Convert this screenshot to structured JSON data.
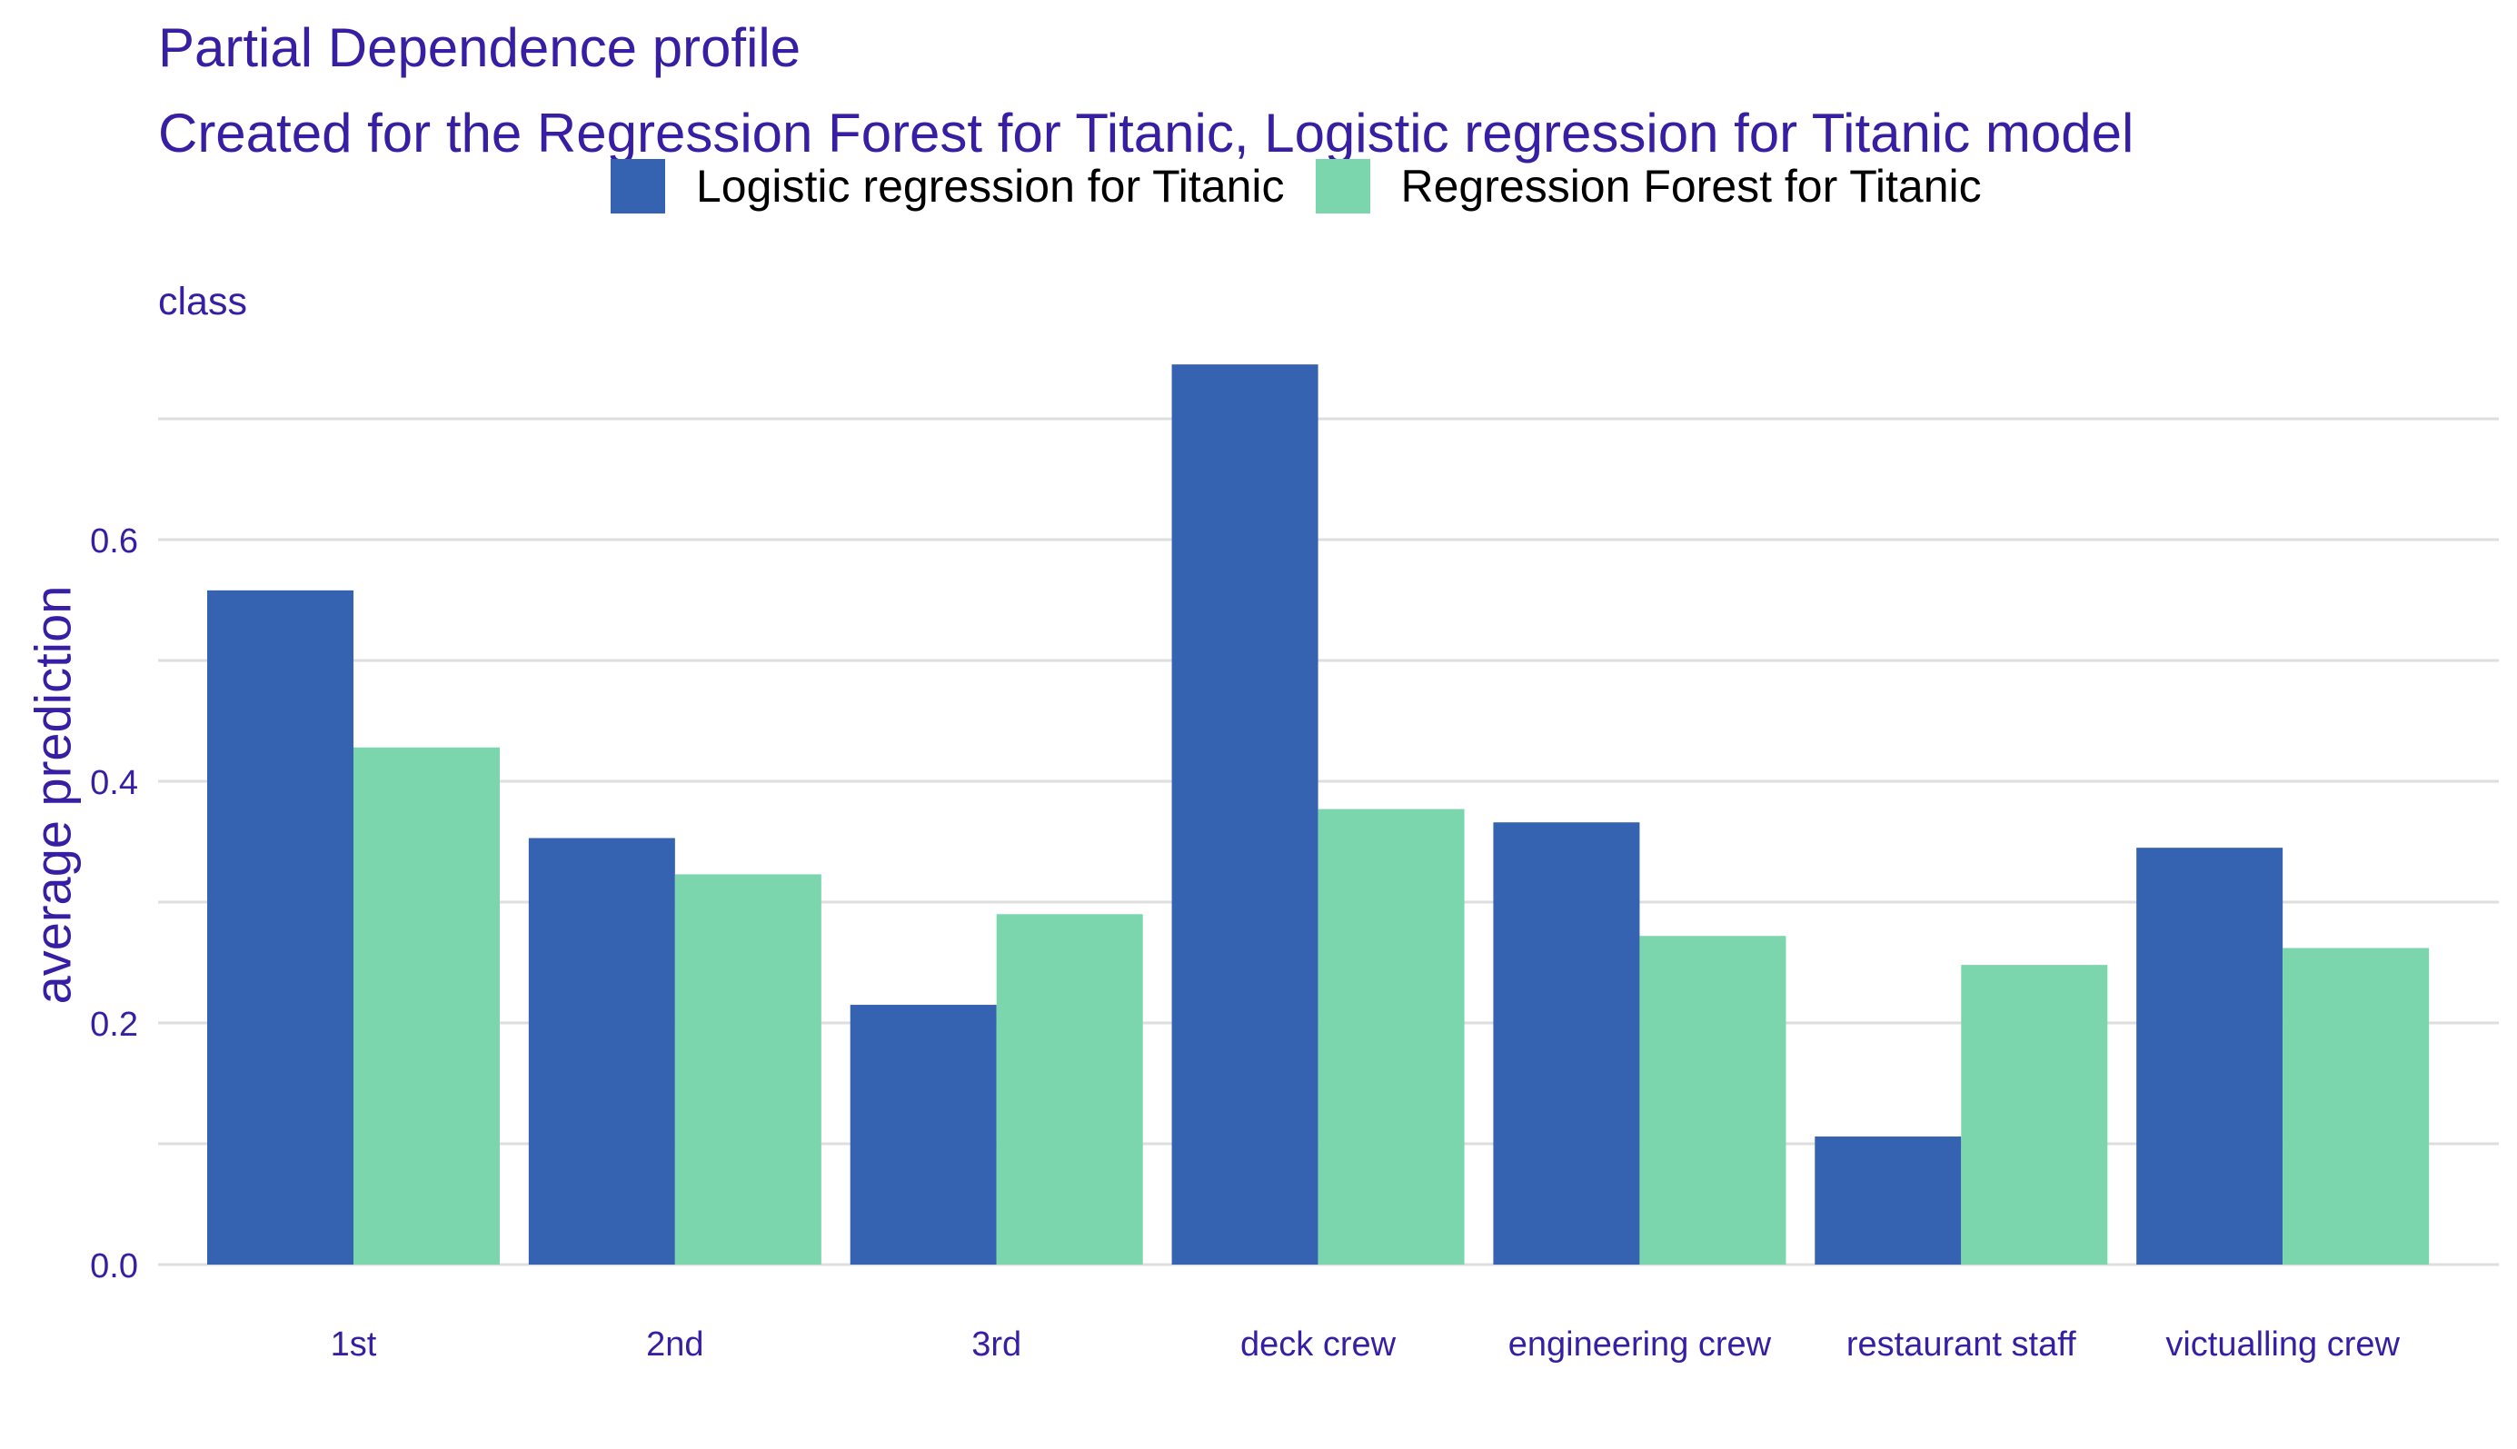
{
  "chart_data": {
    "type": "bar",
    "title": "Partial Dependence profile",
    "subtitle": "Created for the Regression Forest for Titanic, Logistic regression for Titanic model",
    "facet_label": "class",
    "xlabel": "",
    "ylabel": "average prediction",
    "ylim": [
      0,
      0.75
    ],
    "yticks": [
      0.0,
      0.2,
      0.4,
      0.6
    ],
    "ytick_labels": [
      "0.0",
      "0.2",
      "0.4",
      "0.6"
    ],
    "grid": true,
    "legend_position": "top",
    "categories": [
      "1st",
      "2nd",
      "3rd",
      "deck crew",
      "engineering crew",
      "restaurant staff",
      "victualling crew"
    ],
    "series": [
      {
        "name": "Logistic regression for Titanic",
        "color": "#3563b1",
        "values": [
          0.558,
          0.353,
          0.215,
          0.745,
          0.366,
          0.106,
          0.345
        ]
      },
      {
        "name": "Regression Forest for Titanic",
        "color": "#7cd6ad",
        "values": [
          0.428,
          0.323,
          0.29,
          0.377,
          0.272,
          0.248,
          0.262
        ]
      }
    ]
  }
}
